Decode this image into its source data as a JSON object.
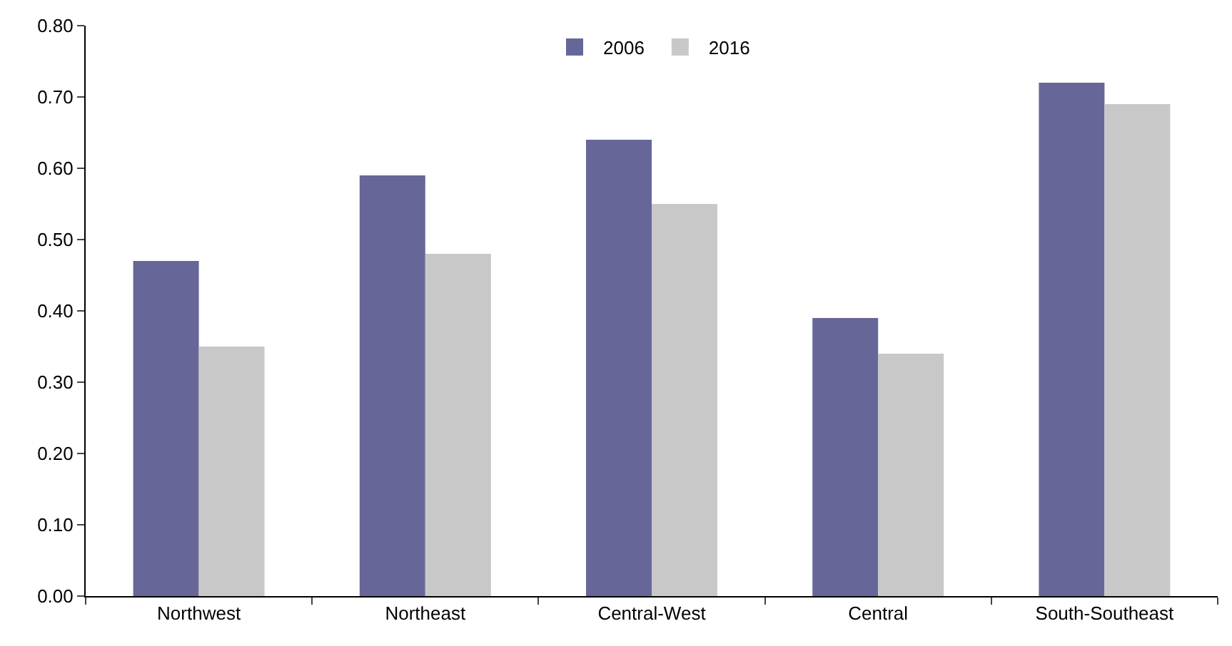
{
  "chart_data": {
    "type": "bar",
    "categories": [
      "Northwest",
      "Northeast",
      "Central-West",
      "Central",
      "South-Southeast"
    ],
    "series": [
      {
        "name": "2006",
        "color": "#666699",
        "values": [
          0.47,
          0.59,
          0.64,
          0.39,
          0.72
        ]
      },
      {
        "name": "2016",
        "color": "#c8c8c8",
        "values": [
          0.35,
          0.48,
          0.55,
          0.34,
          0.69
        ]
      }
    ],
    "ylim": [
      0,
      0.8
    ],
    "yticks": [
      {
        "value": 0,
        "label": "0.00"
      },
      {
        "value": 0.1,
        "label": "0.10"
      },
      {
        "value": 0.2,
        "label": "0.20"
      },
      {
        "value": 0.3,
        "label": "0.30"
      },
      {
        "value": 0.4,
        "label": "0.40"
      },
      {
        "value": 0.5,
        "label": "0.50"
      },
      {
        "value": 0.6,
        "label": "0.60"
      },
      {
        "value": 0.7,
        "label": "0.70"
      },
      {
        "value": 0.8,
        "label": "0.80"
      }
    ],
    "grid": false,
    "legend": "top"
  }
}
